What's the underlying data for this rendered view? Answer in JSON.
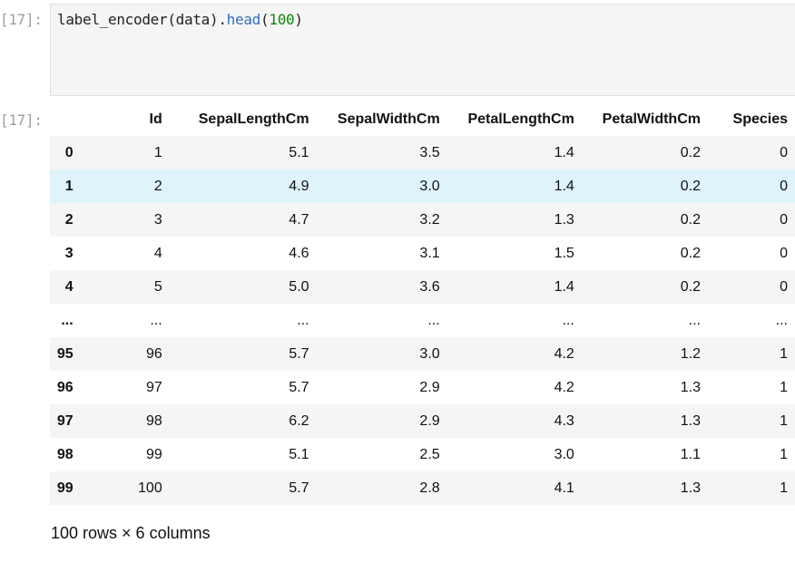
{
  "input": {
    "prompt": "[17]:",
    "code": {
      "fn": "label_encoder(data).",
      "method": "head",
      "open": "(",
      "arg": "100",
      "close": ")"
    }
  },
  "output": {
    "prompt": "[17]:",
    "columns": [
      "",
      "Id",
      "SepalLengthCm",
      "SepalWidthCm",
      "PetalLengthCm",
      "PetalWidthCm",
      "Species"
    ],
    "rows": [
      [
        "0",
        "1",
        "5.1",
        "3.5",
        "1.4",
        "0.2",
        "0"
      ],
      [
        "1",
        "2",
        "4.9",
        "3.0",
        "1.4",
        "0.2",
        "0"
      ],
      [
        "2",
        "3",
        "4.7",
        "3.2",
        "1.3",
        "0.2",
        "0"
      ],
      [
        "3",
        "4",
        "4.6",
        "3.1",
        "1.5",
        "0.2",
        "0"
      ],
      [
        "4",
        "5",
        "5.0",
        "3.6",
        "1.4",
        "0.2",
        "0"
      ],
      [
        "...",
        "...",
        "...",
        "...",
        "...",
        "...",
        "..."
      ],
      [
        "95",
        "96",
        "5.7",
        "3.0",
        "4.2",
        "1.2",
        "1"
      ],
      [
        "96",
        "97",
        "5.7",
        "2.9",
        "4.2",
        "1.3",
        "1"
      ],
      [
        "97",
        "98",
        "6.2",
        "2.9",
        "4.3",
        "1.3",
        "1"
      ],
      [
        "98",
        "99",
        "5.1",
        "2.5",
        "3.0",
        "1.1",
        "1"
      ],
      [
        "99",
        "100",
        "5.7",
        "2.8",
        "4.1",
        "1.3",
        "1"
      ]
    ],
    "hovered_row": 1,
    "footer": "100 rows × 6 columns"
  },
  "colors": {
    "row_stripe": "#f5f5f5",
    "row_hover": "#dff3fb",
    "prompt": "#9e9e9e",
    "editor_bg": "#f5f5f5",
    "code_method": "#2f6fbf",
    "code_number": "#118811"
  }
}
